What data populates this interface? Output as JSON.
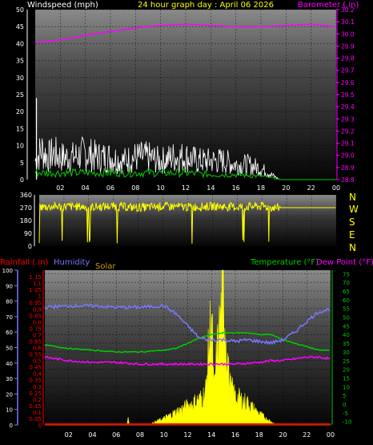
{
  "header": {
    "left": "Windspeed (mph)",
    "center": "24 hour graph day : April 06 2026",
    "right": "Barometer (.in)"
  },
  "colors": {
    "background": "#000000",
    "wind": "#ffffff",
    "gust_avg": "#00cc00",
    "barometer": "#ff00ff",
    "direction": "#ffff00",
    "rain": "#ff0000",
    "humidity": "#7777ff",
    "solar": "#ffff00",
    "temperature": "#00cc00",
    "dewpoint": "#ff00ff",
    "title": "#ffff00",
    "axis_text": "#ffffff"
  },
  "compass": [
    "N",
    "W",
    "S",
    "E",
    "N"
  ],
  "bottom_labels": {
    "rainfall": "Rainfall (.in)",
    "humidity": "Humidity",
    "solar": "Solar",
    "temperature": "Temperature (°F)",
    "dewpoint": "Dew Point (°F)"
  },
  "chart_data": [
    {
      "type": "line",
      "title": "24 hour graph day : April 06 2026",
      "x_ticks": [
        "02",
        "04",
        "06",
        "08",
        "10",
        "12",
        "14",
        "16",
        "18",
        "20",
        "22",
        "00"
      ],
      "x_range_hours": [
        0,
        24
      ],
      "y_left_label": "Windspeed (mph)",
      "y_left_ticks": [
        0,
        5,
        10,
        15,
        20,
        25,
        30,
        35,
        40,
        45,
        50
      ],
      "y_right_label": "Barometer (.in)",
      "y_right_ticks": [
        28.8,
        28.9,
        29.0,
        29.1,
        29.2,
        29.3,
        29.4,
        29.5,
        29.6,
        29.7,
        29.8,
        29.9,
        30.0,
        30.1,
        30.2
      ],
      "series": [
        {
          "name": "Barometer (.in)",
          "x": [
            0,
            2,
            4,
            6,
            8,
            10,
            12,
            14,
            16,
            18,
            20,
            22,
            23,
            24
          ],
          "values": [
            29.93,
            29.95,
            29.99,
            30.02,
            30.05,
            30.07,
            30.08,
            30.07,
            30.06,
            30.06,
            30.07,
            30.08,
            30.07,
            30.06
          ]
        },
        {
          "name": "Windspeed (mph)",
          "x": [
            0,
            0.5,
            1,
            1.5,
            2,
            3,
            4,
            5,
            6,
            7,
            8,
            9,
            10,
            11,
            12,
            13,
            14,
            15,
            16,
            17,
            18,
            18.5,
            19,
            19.5,
            24
          ],
          "values": [
            5,
            8,
            6,
            7,
            6,
            6,
            7,
            6,
            6,
            5,
            6,
            6,
            5,
            6,
            6,
            5,
            5,
            5,
            4,
            4,
            3,
            2,
            1,
            0,
            0
          ]
        },
        {
          "name": "Avg wind",
          "x": [
            0,
            2,
            4,
            6,
            8,
            10,
            12,
            14,
            16,
            18,
            19,
            19.5,
            24
          ],
          "values": [
            2,
            2,
            2,
            2,
            2,
            2,
            2,
            1.5,
            1.5,
            1,
            0.5,
            0,
            0
          ]
        }
      ]
    },
    {
      "type": "line",
      "y_ticks": [
        0,
        90,
        180,
        270,
        360
      ],
      "x_range_hours": [
        0,
        24
      ],
      "series": [
        {
          "name": "Wind direction",
          "x": [
            0,
            2,
            4,
            6,
            8,
            10,
            12,
            14,
            16,
            18,
            19,
            19.5,
            24
          ],
          "values": [
            275,
            280,
            275,
            280,
            270,
            280,
            275,
            280,
            275,
            280,
            270,
            270,
            270
          ]
        }
      ]
    },
    {
      "type": "line",
      "x_ticks": [
        "02",
        "04",
        "06",
        "08",
        "10",
        "12",
        "14",
        "16",
        "18",
        "20",
        "22",
        "00"
      ],
      "x_range_hours": [
        0,
        24
      ],
      "y_humidity_ticks": [
        0,
        10,
        20,
        30,
        40,
        50,
        60,
        70,
        80,
        90,
        100
      ],
      "y_rain_ticks": [
        0,
        0.05,
        0.1,
        0.15,
        0.2,
        0.25,
        0.3,
        0.35,
        0.4,
        0.45,
        0.5,
        0.55,
        0.6,
        0.65,
        0.7,
        0.75,
        0.8,
        0.85,
        0.9,
        0.95,
        1,
        1.05,
        1.1,
        1.15
      ],
      "y_temp_ticks": [
        -10,
        -5,
        0,
        5,
        10,
        15,
        20,
        25,
        30,
        35,
        40,
        45,
        50,
        55,
        60,
        65,
        70,
        75
      ],
      "series": [
        {
          "name": "Humidity",
          "axis": "humidity",
          "x": [
            0,
            2,
            4,
            6,
            8,
            10,
            11,
            12,
            13,
            14,
            15,
            16,
            17,
            18,
            19,
            20,
            21,
            22,
            23,
            24
          ],
          "values": [
            76,
            77,
            77,
            76,
            76,
            77,
            72,
            64,
            56,
            55,
            55,
            54,
            55,
            54,
            53,
            55,
            60,
            67,
            73,
            75
          ]
        },
        {
          "name": "Temperature (°F)",
          "axis": "temp",
          "x": [
            0,
            1,
            2,
            4,
            6,
            8,
            10,
            11,
            12,
            13,
            14,
            15,
            16,
            17,
            18,
            19,
            20,
            21,
            22,
            23,
            24
          ],
          "values": [
            34,
            33,
            32,
            31,
            30,
            30,
            31,
            32,
            35,
            38,
            40,
            41,
            41,
            41,
            40,
            40,
            37,
            35,
            33,
            31,
            31
          ]
        },
        {
          "name": "Dew Point (°F)",
          "axis": "temp",
          "x": [
            0,
            1,
            2,
            4,
            6,
            8,
            10,
            12,
            14,
            16,
            18,
            19,
            20,
            22,
            23,
            24
          ],
          "values": [
            27,
            26,
            25,
            24,
            24,
            23,
            23,
            23,
            23,
            23,
            24,
            25,
            25,
            27,
            27,
            26
          ]
        },
        {
          "name": "Solar",
          "axis": "solar_hidden",
          "x": [
            0,
            6.9,
            7,
            7.1,
            8.5,
            9,
            10,
            11,
            12,
            13,
            13.5,
            14,
            14.2,
            14.5,
            15,
            15.5,
            16,
            17,
            18,
            19,
            19.5,
            24
          ],
          "values": [
            0,
            0,
            5,
            0,
            0,
            1,
            4,
            8,
            12,
            16,
            20,
            72,
            20,
            48,
            82,
            25,
            18,
            14,
            7,
            2,
            0,
            0
          ]
        },
        {
          "name": "Rainfall (.in)",
          "axis": "rain",
          "x": [
            0,
            24
          ],
          "values": [
            0,
            0
          ]
        }
      ]
    }
  ]
}
